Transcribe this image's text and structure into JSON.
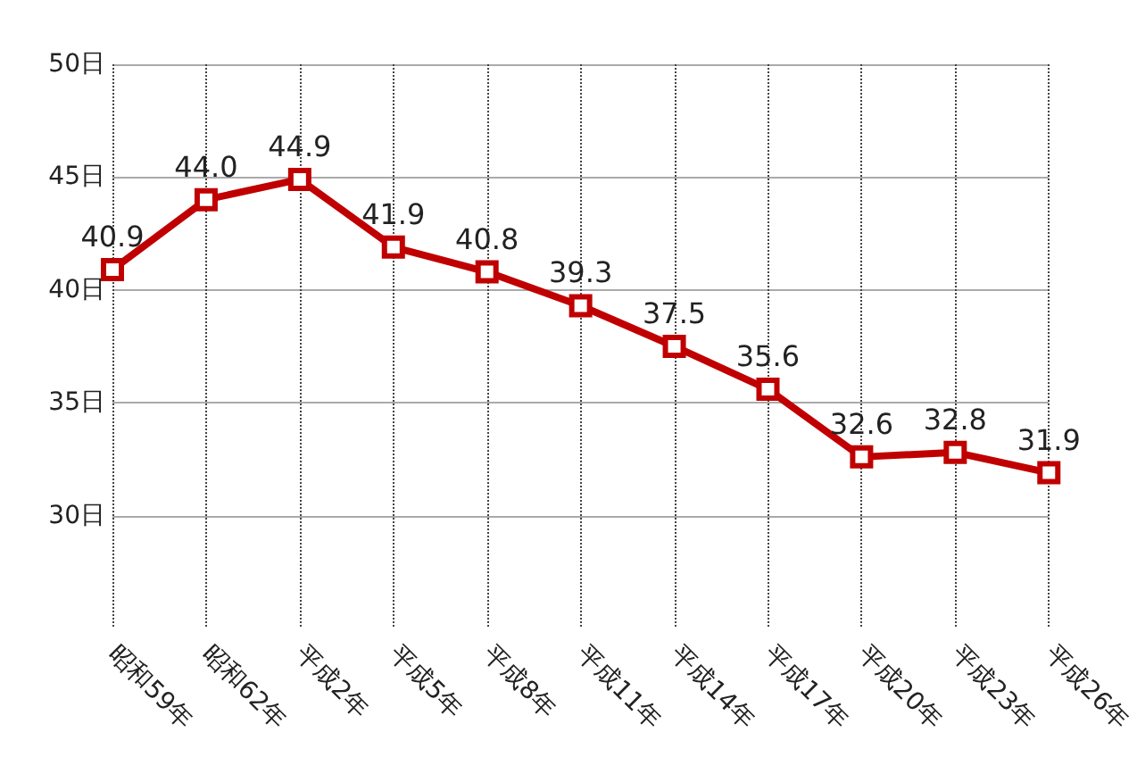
{
  "chart_data": {
    "type": "line",
    "categories": [
      "昭和59年",
      "昭和62年",
      "平成2年",
      "平成5年",
      "平成8年",
      "平成11年",
      "平成14年",
      "平成17年",
      "平成20年",
      "平成23年",
      "平成26年"
    ],
    "series": [
      {
        "color": "#c00000",
        "values": [
          40.9,
          44.0,
          44.9,
          41.9,
          40.8,
          39.3,
          37.5,
          35.6,
          32.6,
          32.8,
          31.9
        ],
        "value_labels": [
          "40.9",
          "44.0",
          "44.9",
          "41.9",
          "40.8",
          "39.3",
          "37.5",
          "35.6",
          "32.6",
          "32.8",
          "31.9"
        ]
      }
    ],
    "ylim": [
      25,
      50
    ],
    "yticks": [
      {
        "value": 30,
        "label": "30日"
      },
      {
        "value": 35,
        "label": "35日"
      },
      {
        "value": 40,
        "label": "40日"
      },
      {
        "value": 45,
        "label": "45日"
      },
      {
        "value": 50,
        "label": "50日"
      }
    ],
    "grid": true,
    "marker": "square",
    "line_style": "solid"
  }
}
